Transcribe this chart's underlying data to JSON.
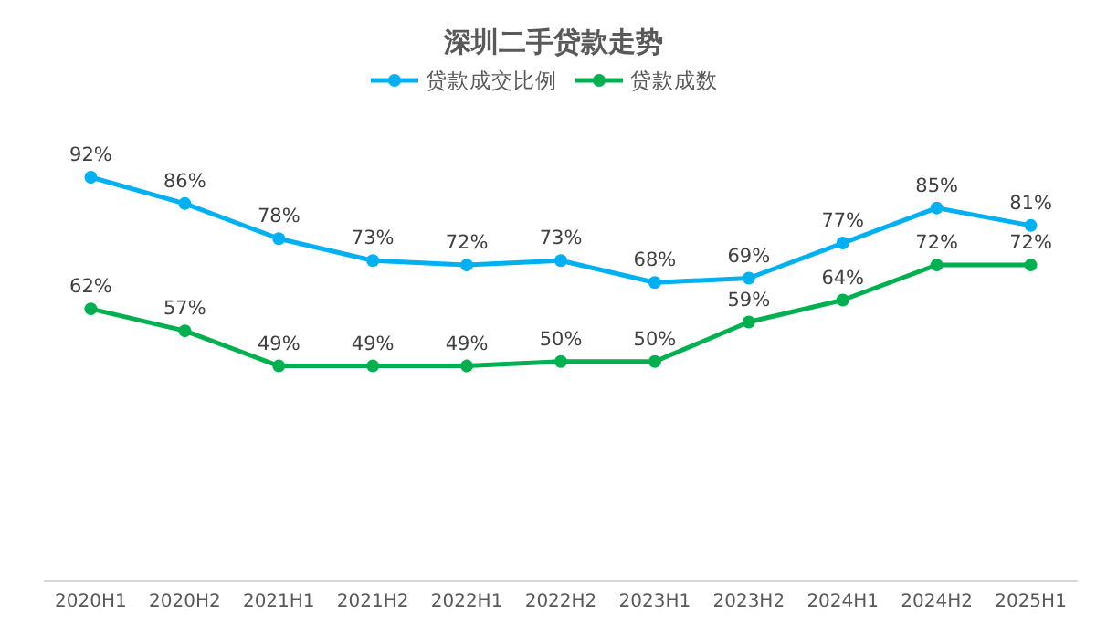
{
  "chart_data": {
    "type": "line",
    "title": "深圳二手贷款走势",
    "categories": [
      "2020H1",
      "2020H2",
      "2021H1",
      "2021H2",
      "2022H1",
      "2022H2",
      "2023H1",
      "2023H2",
      "2024H1",
      "2024H2",
      "2025H1"
    ],
    "series": [
      {
        "name": "贷款成交比例",
        "color": "#00b0f0",
        "values": [
          92,
          86,
          78,
          73,
          72,
          73,
          68,
          69,
          77,
          85,
          81
        ],
        "value_labels": [
          "92%",
          "86%",
          "78%",
          "73%",
          "72%",
          "73%",
          "68%",
          "69%",
          "77%",
          "85%",
          "81%"
        ]
      },
      {
        "name": "贷款成数",
        "color": "#00b050",
        "values": [
          62,
          57,
          49,
          49,
          49,
          50,
          50,
          59,
          64,
          72,
          72
        ],
        "value_labels": [
          "62%",
          "57%",
          "49%",
          "49%",
          "49%",
          "50%",
          "50%",
          "59%",
          "64%",
          "72%",
          "72%"
        ]
      }
    ],
    "legend": "top",
    "marker": "circle"
  }
}
